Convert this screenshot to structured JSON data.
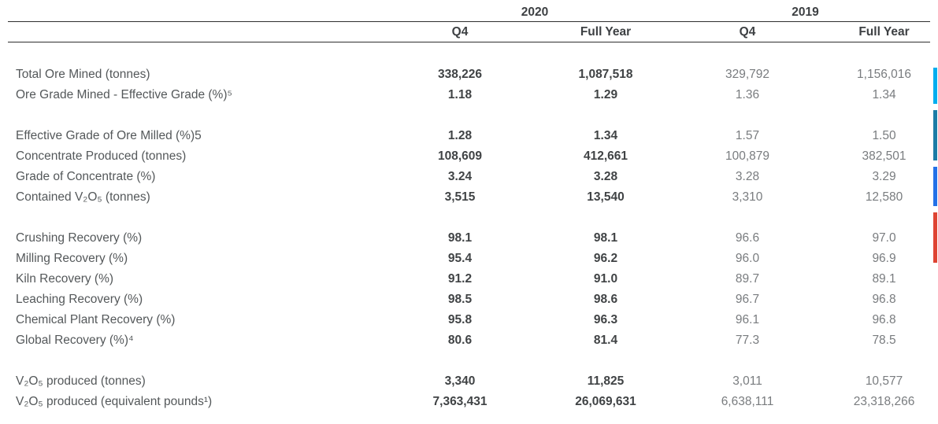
{
  "table": {
    "year_headers": [
      {
        "label": "2020"
      },
      {
        "label": "2019"
      }
    ],
    "column_headers": [
      "Q4",
      "Full Year",
      "Q4",
      "Full Year"
    ],
    "groups": [
      {
        "rows": [
          {
            "label": "Total Ore Mined (tonnes)",
            "values": [
              "338,226",
              "1,087,518",
              "329,792",
              "1,156,016"
            ]
          },
          {
            "label": "Ore Grade Mined - Effective Grade (%)⁵",
            "values": [
              "1.18",
              "1.29",
              "1.36",
              "1.34"
            ]
          }
        ]
      },
      {
        "rows": [
          {
            "label": "Effective Grade of Ore Milled (%)5",
            "values": [
              "1.28",
              "1.34",
              "1.57",
              "1.50"
            ]
          },
          {
            "label": "Concentrate Produced (tonnes)",
            "values": [
              "108,609",
              "412,661",
              "100,879",
              "382,501"
            ]
          },
          {
            "label": "Grade of Concentrate (%)",
            "values": [
              "3.24",
              "3.28",
              "3.28",
              "3.29"
            ]
          },
          {
            "label": "Contained V₂O₅ (tonnes)",
            "values": [
              "3,515",
              "13,540",
              "3,310",
              "12,580"
            ]
          }
        ]
      },
      {
        "rows": [
          {
            "label": "Crushing Recovery (%)",
            "values": [
              "98.1",
              "98.1",
              "96.6",
              "97.0"
            ]
          },
          {
            "label": "Milling Recovery (%)",
            "values": [
              "95.4",
              "96.2",
              "96.0",
              "96.9"
            ]
          },
          {
            "label": "Kiln Recovery (%)",
            "values": [
              "91.2",
              "91.0",
              "89.7",
              "89.1"
            ]
          },
          {
            "label": "Leaching Recovery (%)",
            "values": [
              "98.5",
              "98.6",
              "96.7",
              "96.8"
            ]
          },
          {
            "label": "Chemical Plant Recovery (%)",
            "values": [
              "95.8",
              "96.3",
              "96.1",
              "96.8"
            ]
          },
          {
            "label": "Global Recovery (%)⁴",
            "values": [
              "80.6",
              "81.4",
              "77.3",
              "78.5"
            ]
          }
        ]
      },
      {
        "rows": [
          {
            "label": "V₂O₅ produced (tonnes)",
            "values": [
              "3,340",
              "11,825",
              "3,011",
              "10,577"
            ]
          },
          {
            "label": "V₂O₅ produced (equivalent pounds¹)",
            "values": [
              "7,363,431",
              "26,069,631",
              "6,638,111",
              "23,318,266"
            ]
          }
        ]
      }
    ],
    "colors": {
      "header_text": "#3d4043",
      "label_text": "#54585a",
      "value_2020": "#404345",
      "value_2019": "#797c7f",
      "rule": "#2e2e2e"
    }
  },
  "side_markers": [
    {
      "name": "cyan-marker",
      "color": "#00aeef"
    },
    {
      "name": "teal-marker",
      "color": "#1b7ca6"
    },
    {
      "name": "blue-marker",
      "color": "#2471e8"
    },
    {
      "name": "red-marker",
      "color": "#de4433"
    }
  ]
}
